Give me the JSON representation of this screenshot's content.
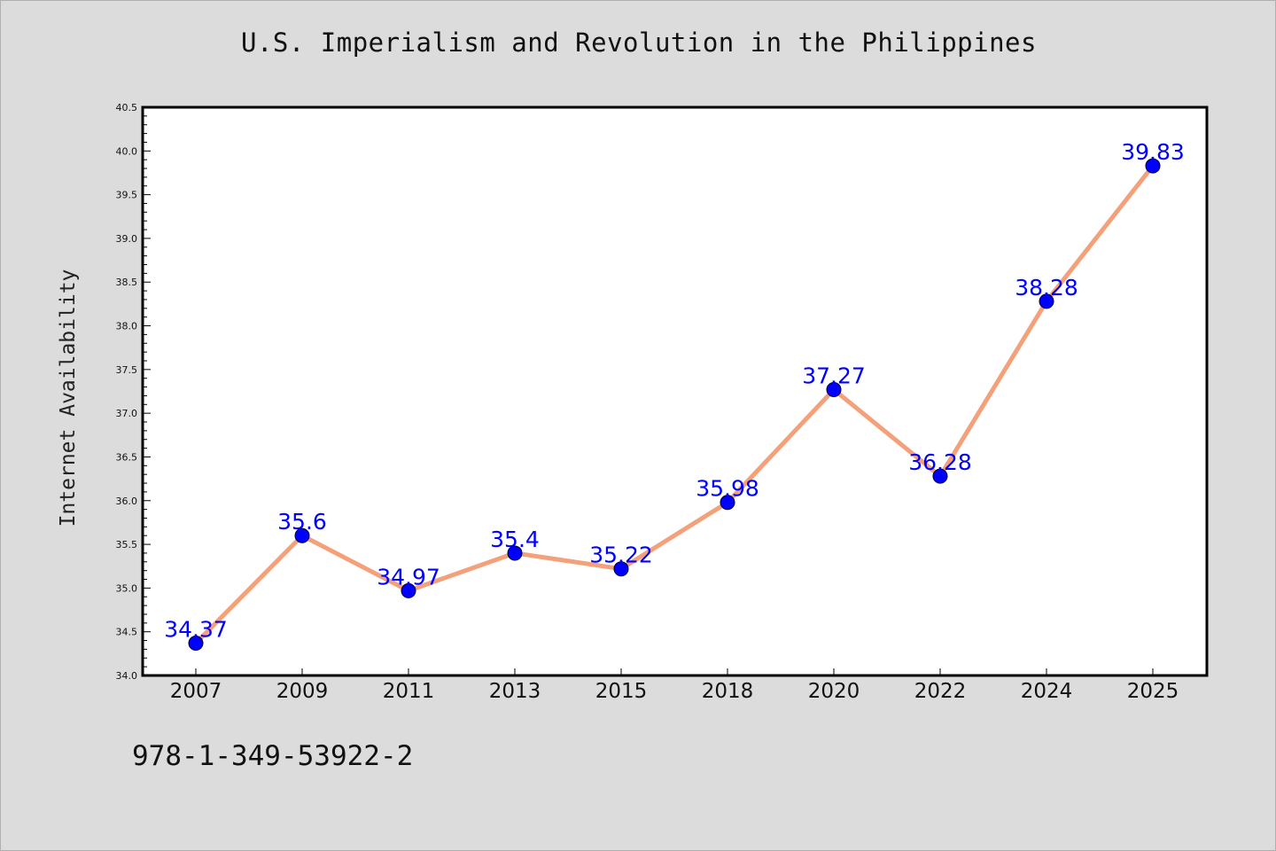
{
  "chart_data": {
    "type": "line",
    "title": "U.S. Imperialism and Revolution in the Philippines",
    "xlabel": "",
    "ylabel": "Internet Availability",
    "categories": [
      "2007",
      "2009",
      "2011",
      "2013",
      "2015",
      "2018",
      "2020",
      "2022",
      "2024",
      "2025"
    ],
    "series": [
      {
        "values": [
          34.37,
          35.6,
          34.97,
          35.4,
          35.22,
          35.98,
          37.27,
          36.28,
          38.28,
          39.83
        ],
        "data_labels": [
          "34.37",
          "35.6",
          "34.97",
          "35.4",
          "35.22",
          "35.98",
          "37.27",
          "36.28",
          "38.28",
          "39.83"
        ],
        "line_color": "#f4a07a",
        "marker_color": "#0000ff"
      }
    ],
    "ylim": [
      34.0,
      40.5
    ],
    "yticks": [
      "34.0",
      "34.5",
      "35.0",
      "35.5",
      "36.0",
      "36.5",
      "37.0",
      "37.5",
      "38.0",
      "38.5",
      "39.0",
      "39.5",
      "40.0",
      "40.5"
    ],
    "grid": false,
    "data_label_color": "#0000ff",
    "background": "#dcdcdc",
    "plot_background": "#ffffff"
  },
  "footnote": "978-1-349-53922-2"
}
